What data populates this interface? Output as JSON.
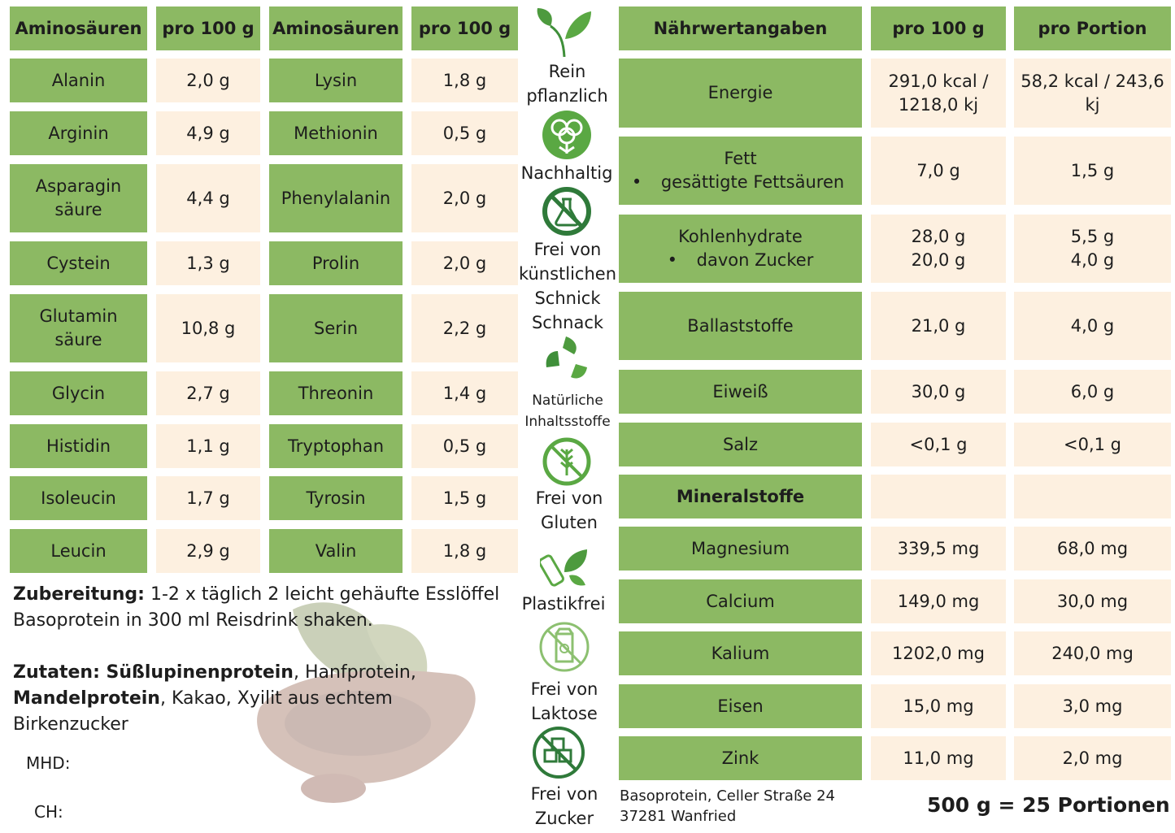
{
  "amino": {
    "headers": [
      "Aminosäuren",
      "pro 100 g",
      "Aminosäuren",
      "pro 100 g"
    ],
    "rows": [
      [
        "Alanin",
        "2,0 g",
        "Lysin",
        "1,8 g"
      ],
      [
        "Arginin",
        "4,9 g",
        "Methionin",
        "0,5 g"
      ],
      [
        "Asparagin\nsäure",
        "4,4 g",
        "Phenylalanin",
        "2,0 g"
      ],
      [
        "Cystein",
        "1,3 g",
        "Prolin",
        "2,0 g"
      ],
      [
        "Glutamin\nsäure",
        "10,8 g",
        "Serin",
        "2,2 g"
      ],
      [
        "Glycin",
        "2,7 g",
        "Threonin",
        "1,4 g"
      ],
      [
        "Histidin",
        "1,1 g",
        "Tryptophan",
        "0,5 g"
      ],
      [
        "Isoleucin",
        "1,7 g",
        "Tyrosin",
        "1,5 g"
      ],
      [
        "Leucin",
        "2,9 g",
        "Valin",
        "1,8 g"
      ]
    ]
  },
  "icons": [
    {
      "icon": "leaves-icon",
      "label": "Rein\npflanzlich"
    },
    {
      "icon": "cotton-icon",
      "label": "Nachhaltig"
    },
    {
      "icon": "no-chemicals-icon",
      "label": "Frei von\nkünstlichen\nSchnick\nSchnack"
    },
    {
      "icon": "recycle-leaves-icon",
      "label": "Natürliche\nInhaltsstoffe"
    },
    {
      "icon": "gluten-free-icon",
      "label": "Frei von\nGluten"
    },
    {
      "icon": "plastic-free-icon",
      "label": "Plastikfrei"
    },
    {
      "icon": "lactose-free-icon",
      "label": "Frei von\nLaktose"
    },
    {
      "icon": "sugar-free-icon",
      "label": "Frei von\nZucker"
    }
  ],
  "nutrition": {
    "headers": [
      "Nährwertangaben",
      "pro 100 g",
      "pro Portion"
    ],
    "rows": [
      {
        "name": "Energie",
        "p100": "291,0 kcal /\n1218,0 kj",
        "portion": "58,2 kcal / 243,6\nkj"
      },
      {
        "name": "Fett",
        "sub": "gesättigte Fettsäuren",
        "p100": "7,0 g",
        "portion": "1,5 g"
      },
      {
        "name": "Kohlenhydrate",
        "sub": "davon Zucker",
        "p100": "28,0 g\n20,0 g",
        "portion": "5,5 g\n4,0 g"
      },
      {
        "name": "Ballaststoffe",
        "p100": "21,0 g",
        "portion": "4,0 g"
      },
      {
        "name": "Eiweiß",
        "p100": "30,0 g",
        "portion": "6,0 g"
      },
      {
        "name": "Salz",
        "p100": "<0,1 g",
        "portion": "<0,1 g"
      },
      {
        "name": "Mineralstoffe",
        "bold": true,
        "p100": "",
        "portion": ""
      },
      {
        "name": "Magnesium",
        "p100": "339,5 mg",
        "portion": "68,0 mg"
      },
      {
        "name": "Calcium",
        "p100": "149,0 mg",
        "portion": "30,0 mg"
      },
      {
        "name": "Kalium",
        "p100": "1202,0 mg",
        "portion": "240,0 mg"
      },
      {
        "name": "Eisen",
        "p100": "15,0 mg",
        "portion": "3,0 mg"
      },
      {
        "name": "Zink",
        "p100": "11,0 mg",
        "portion": "2,0 mg"
      }
    ]
  },
  "preparation": {
    "label": "Zubereitung:",
    "text": " 1-2 x täglich 2 leicht gehäufte Esslöffel Basoprotein in 300 ml Reisdrink shaken."
  },
  "ingredients": {
    "label": "Zutaten:",
    "bold1": " Süßlupinenprotein",
    "text1": ", Hanfprotein,",
    "bold2": "Mandelprotein",
    "text2": ", Kakao, Xyilit aus echtem Birkenzucker"
  },
  "mhd_label": "MHD:",
  "ch_label": "CH:",
  "address": {
    "line1": "Basoprotein, Celler Straße 24",
    "line2": "37281 Wanfried"
  },
  "portions": "500 g = 25 Portionen",
  "colors": {
    "green": "#8cb963",
    "cream": "#fdf0e0",
    "icon_green": "#5aa843",
    "icon_dark": "#2f7a3a"
  }
}
